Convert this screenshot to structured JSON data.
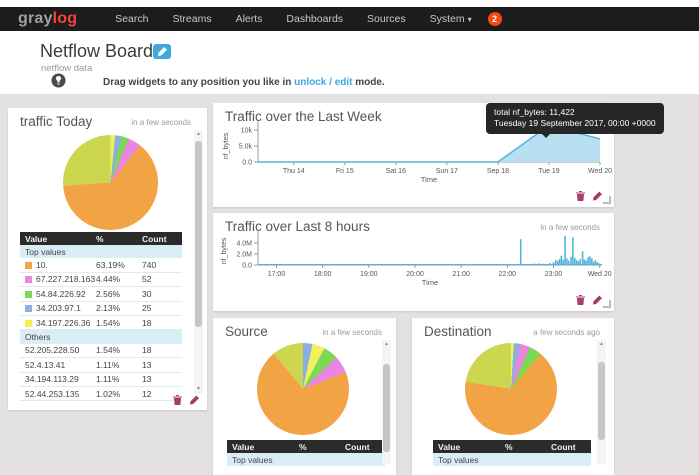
{
  "navbar": {
    "logo_gray": "gray",
    "logo_accent": "log",
    "items": [
      {
        "label": "Search"
      },
      {
        "label": "Streams"
      },
      {
        "label": "Alerts"
      },
      {
        "label": "Dashboards"
      },
      {
        "label": "Sources"
      },
      {
        "label": "System"
      }
    ],
    "system_caret": "▾",
    "badge": "2"
  },
  "header": {
    "title": "Netflow Board",
    "subtitle": "netflow data",
    "hint_prefix": "Drag widgets to any position you like in ",
    "hint_link": "unlock / edit",
    "hint_suffix": " mode."
  },
  "icons": {
    "scroll_up": "▲",
    "scroll_down": "▼"
  },
  "colors": {
    "accent_blue": "#41a8dd",
    "chart_line": "#53b5dc",
    "chart_fill": "#b8e0f2",
    "action_icon": "#a63d6f",
    "pie_orange": "#f2a444",
    "pie_yellowgreen": "#ccd64e",
    "pie_magenta": "#e886e0",
    "pie_green": "#7bd954",
    "pie_blue": "#8cafe3",
    "pie_yellow": "#f4f05c"
  },
  "widgets": {
    "traffic_today": {
      "title": "traffic Today",
      "refresh": "in a few seconds",
      "table": {
        "headers": [
          "Value",
          "%",
          "Count"
        ],
        "sections": [
          {
            "label": "Top values",
            "rows": [
              {
                "value": "10.",
                "pct": "63.19%",
                "count": "740",
                "swatch": "#f2a444"
              },
              {
                "value": "67.227.218.163",
                "pct": "4.44%",
                "count": "52",
                "swatch": "#e886e0"
              },
              {
                "value": "54.84.226.92",
                "pct": "2.56%",
                "count": "30",
                "swatch": "#7bd954"
              },
              {
                "value": "34.203.97.1",
                "pct": "2.13%",
                "count": "25",
                "swatch": "#8cafe3"
              },
              {
                "value": "34.197.226.36",
                "pct": "1.54%",
                "count": "18",
                "swatch": "#f4f05c"
              }
            ]
          },
          {
            "label": "Others",
            "rows": [
              {
                "value": "52.205.228.50",
                "pct": "1.54%",
                "count": "18",
                "swatch": null
              },
              {
                "value": "52.4.13.41",
                "pct": "1.11%",
                "count": "13",
                "swatch": null
              },
              {
                "value": "34.194.113.29",
                "pct": "1.11%",
                "count": "13",
                "swatch": null
              },
              {
                "value": "52.44.253.135",
                "pct": "1.02%",
                "count": "12",
                "swatch": null
              }
            ]
          }
        ]
      }
    },
    "week": {
      "title": "Traffic over the Last Week",
      "tooltip": {
        "line1": "total nf_bytes: 11,422",
        "line2": "Tuesday 19 September 2017, 00:00 +0000"
      }
    },
    "hours8": {
      "title": "Traffic over Last 8 hours",
      "refresh": "in a few seconds"
    },
    "source": {
      "title": "Source",
      "refresh": "in a few seconds",
      "table_headers": [
        "Value",
        "%",
        "Count"
      ],
      "section_label": "Top values"
    },
    "destination": {
      "title": "Destination",
      "refresh": "a few seconds ago",
      "table_headers": [
        "Value",
        "%",
        "Count"
      ],
      "section_label": "Top values"
    }
  },
  "chart_data": [
    {
      "id": "week",
      "type": "area",
      "title": "Traffic over the Last Week",
      "xlabel": "Time",
      "ylabel": "nf_bytes",
      "x": [
        13.3,
        14,
        15,
        16,
        17,
        18,
        19,
        20
      ],
      "values": [
        0,
        0,
        0,
        0,
        0,
        0,
        11422,
        7200
      ],
      "xlim": [
        13.3,
        20
      ],
      "ylim": [
        0,
        12700
      ],
      "xticks": [
        {
          "v": 14,
          "label": "Thu 14"
        },
        {
          "v": 15,
          "label": "Fri 15"
        },
        {
          "v": 16,
          "label": "Sat 16"
        },
        {
          "v": 17,
          "label": "Sun 17"
        },
        {
          "v": 18,
          "label": "Sep 18"
        },
        {
          "v": 19,
          "label": "Tue 19"
        },
        {
          "v": 20,
          "label": "Wed 20"
        }
      ],
      "yticks": [
        {
          "v": 0,
          "label": "0.0"
        },
        {
          "v": 5000,
          "label": "5.0k"
        },
        {
          "v": 10000,
          "label": "10k"
        }
      ],
      "highlight": {
        "x": 19,
        "value": 11422
      },
      "grid": false,
      "legend": "none"
    },
    {
      "id": "hours8",
      "type": "bar",
      "title": "Traffic over Last 8 hours",
      "xlabel": "Time",
      "ylabel": "nf_bytes",
      "unit": "millions of bytes",
      "xlim": [
        16.6,
        24.05
      ],
      "ylim_M": [
        0,
        6.2
      ],
      "xticks": [
        {
          "v": 17,
          "label": "17:00"
        },
        {
          "v": 18,
          "label": "18:00"
        },
        {
          "v": 19,
          "label": "19:00"
        },
        {
          "v": 20,
          "label": "20:00"
        },
        {
          "v": 21,
          "label": "21:00"
        },
        {
          "v": 22,
          "label": "22:00"
        },
        {
          "v": 23,
          "label": "23:00"
        },
        {
          "v": 24,
          "label": "Wed 20"
        }
      ],
      "yticks": [
        {
          "v": 0,
          "label": "0.0"
        },
        {
          "v": 2,
          "label": "2.0M"
        },
        {
          "v": 4,
          "label": "4.0M"
        }
      ],
      "bars": [
        [
          22.29,
          4.7
        ],
        [
          22.43,
          0.15
        ],
        [
          22.52,
          0.2
        ],
        [
          22.6,
          0.25
        ],
        [
          22.68,
          0.3
        ],
        [
          22.76,
          0.25
        ],
        [
          22.84,
          0.2
        ],
        [
          22.92,
          0.35
        ],
        [
          23.0,
          0.55
        ],
        [
          23.05,
          0.9
        ],
        [
          23.09,
          0.7
        ],
        [
          23.13,
          1.1
        ],
        [
          23.17,
          1.7
        ],
        [
          23.21,
          0.95
        ],
        [
          23.25,
          5.3
        ],
        [
          23.29,
          1.2
        ],
        [
          23.33,
          0.8
        ],
        [
          23.38,
          1.5
        ],
        [
          23.42,
          5.0
        ],
        [
          23.46,
          1.3
        ],
        [
          23.5,
          0.9
        ],
        [
          23.54,
          0.7
        ],
        [
          23.58,
          1.1
        ],
        [
          23.63,
          2.5
        ],
        [
          23.67,
          1.0
        ],
        [
          23.71,
          0.8
        ],
        [
          23.75,
          1.4
        ],
        [
          23.79,
          1.6
        ],
        [
          23.83,
          1.2
        ],
        [
          23.87,
          0.6
        ],
        [
          23.91,
          0.9
        ],
        [
          23.95,
          0.5
        ],
        [
          23.99,
          0.3
        ]
      ],
      "grid": false,
      "legend": "none"
    },
    {
      "id": "traffic_today_pie",
      "type": "pie",
      "title": "traffic Today",
      "slices": [
        {
          "label": "34.197.226.36",
          "color": "#f4f05c",
          "pct": 1.54
        },
        {
          "label": "34.203.97.1",
          "color": "#8cafe3",
          "pct": 2.13
        },
        {
          "label": "54.84.226.92",
          "color": "#7bd954",
          "pct": 2.56
        },
        {
          "label": "67.227.218.163",
          "color": "#e886e0",
          "pct": 4.44
        },
        {
          "label": "10.",
          "color": "#f2a444",
          "pct": 63.19
        },
        {
          "label": "Others",
          "color": "#ccd64e",
          "pct": 26.14
        }
      ]
    },
    {
      "id": "source_pie",
      "type": "pie",
      "title": "Source",
      "note": "percentages estimated from pixels; labels not visible",
      "slices": [
        {
          "label": "",
          "color": "#8cafe3",
          "pct": 3.3
        },
        {
          "label": "",
          "color": "#f4f05c",
          "pct": 4.4
        },
        {
          "label": "",
          "color": "#7bd954",
          "pct": 5.3
        },
        {
          "label": "",
          "color": "#e886e0",
          "pct": 6.1
        },
        {
          "label": "",
          "color": "#f2a444",
          "pct": 69.8
        },
        {
          "label": "",
          "color": "#ccd64e",
          "pct": 11.1
        }
      ]
    },
    {
      "id": "destination_pie",
      "type": "pie",
      "title": "Destination",
      "note": "percentages estimated from pixels; labels not visible",
      "slices": [
        {
          "label": "",
          "color": "#f4f05c",
          "pct": 1.0
        },
        {
          "label": "",
          "color": "#8cafe3",
          "pct": 2.2
        },
        {
          "label": "",
          "color": "#e886e0",
          "pct": 3.6
        },
        {
          "label": "",
          "color": "#7bd954",
          "pct": 4.2
        },
        {
          "label": "",
          "color": "#f2a444",
          "pct": 66.5
        },
        {
          "label": "",
          "color": "#ccd64e",
          "pct": 22.5
        }
      ]
    }
  ]
}
